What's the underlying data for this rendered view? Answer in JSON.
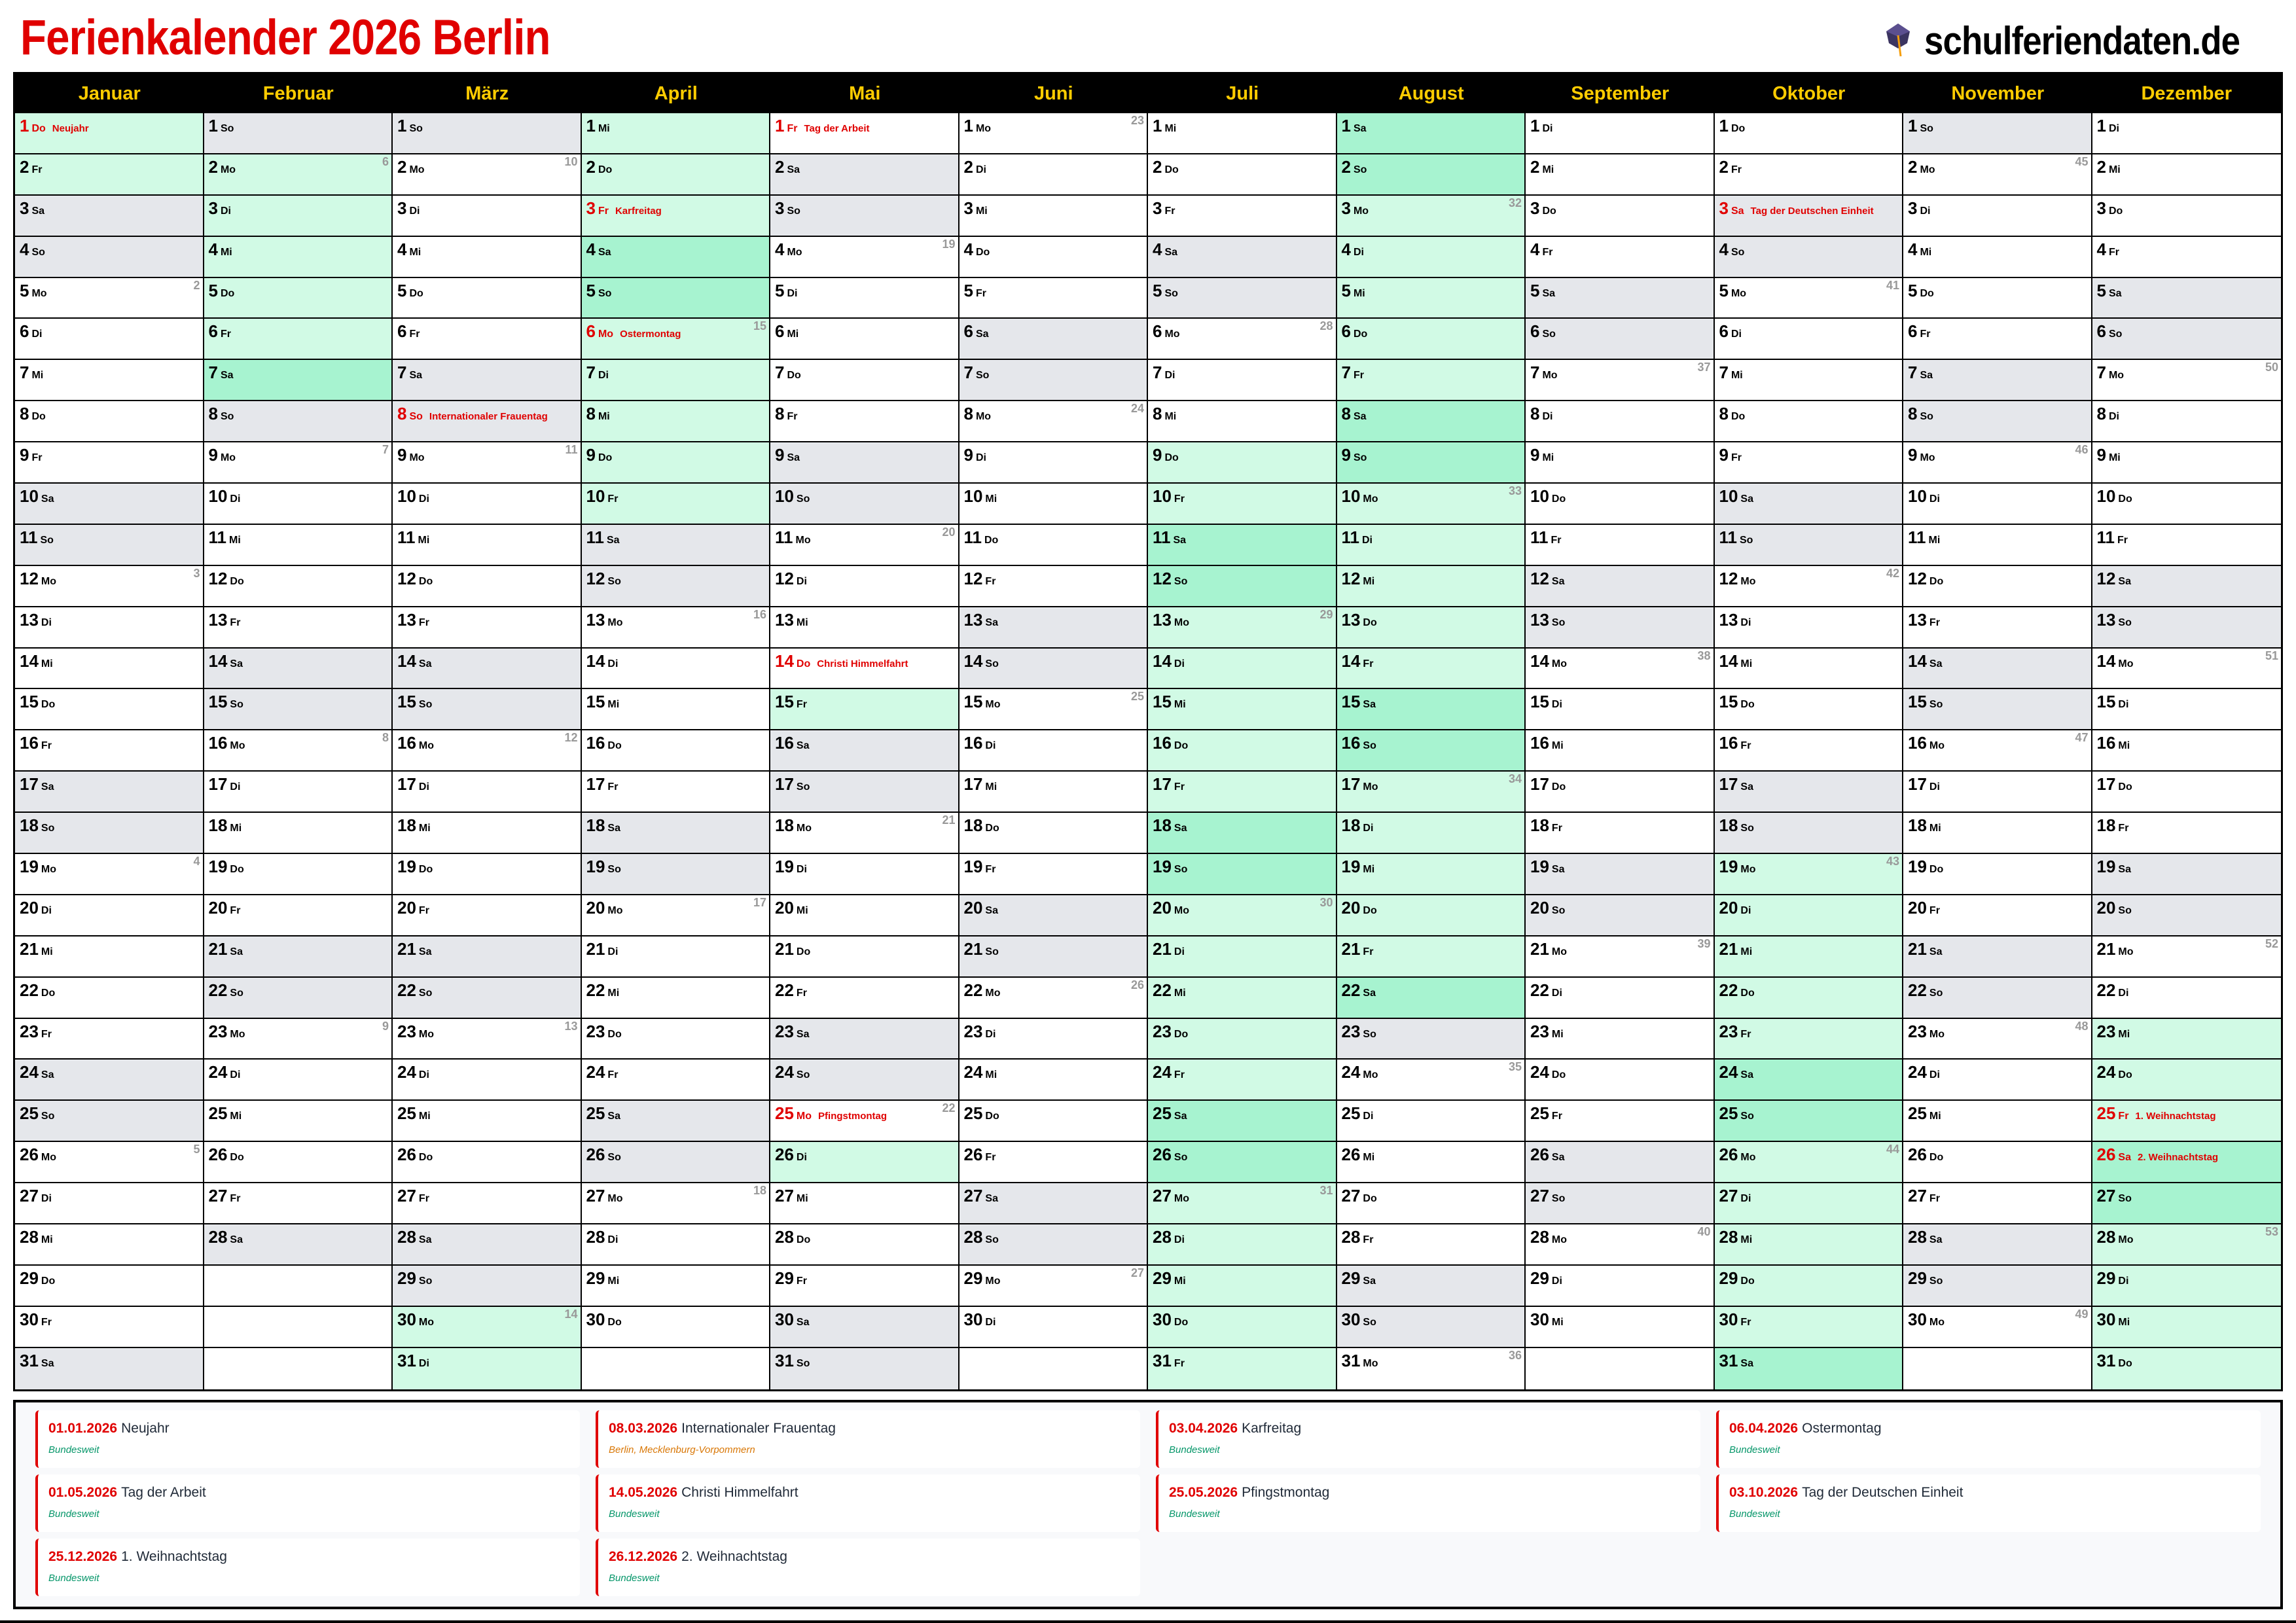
{
  "title": "Ferienkalender 2026 Berlin",
  "logo": {
    "text": "schulferiendaten.de",
    "icon": "graduation-cap-icon"
  },
  "colors": {
    "title": "#e00000",
    "header_bg": "#000000",
    "header_text": "#ffcc00",
    "weekend": "#e5e7eb",
    "ferien": "#d1fae5",
    "ferien_weekend": "#a7f3d0",
    "holiday_text": "#e00000",
    "week_number": "#999999",
    "region_bundesweit": "#059669",
    "region_regional": "#d97706"
  },
  "year": 2026,
  "weekday_names": [
    "Mo",
    "Di",
    "Mi",
    "Do",
    "Fr",
    "Sa",
    "So"
  ],
  "months": [
    {
      "name": "Januar",
      "first_weekday": "Do",
      "length": 31,
      "week_numbers": [
        2,
        3,
        4,
        5
      ]
    },
    {
      "name": "Februar",
      "first_weekday": "So",
      "length": 28,
      "week_numbers": [
        6,
        7,
        8,
        9
      ]
    },
    {
      "name": "März",
      "first_weekday": "So",
      "length": 31,
      "week_numbers": [
        10,
        11,
        12,
        13,
        14
      ]
    },
    {
      "name": "April",
      "first_weekday": "Mi",
      "length": 30,
      "week_numbers": [
        15,
        16,
        17,
        18
      ]
    },
    {
      "name": "Mai",
      "first_weekday": "Fr",
      "length": 31,
      "week_numbers": [
        19,
        20,
        21,
        22
      ]
    },
    {
      "name": "Juni",
      "first_weekday": "Mo",
      "length": 30,
      "week_numbers": [
        23,
        24,
        25,
        26,
        27
      ]
    },
    {
      "name": "Juli",
      "first_weekday": "Mi",
      "length": 31,
      "week_numbers": [
        28,
        29,
        30,
        31
      ]
    },
    {
      "name": "August",
      "first_weekday": "Sa",
      "length": 31,
      "week_numbers": [
        32,
        33,
        34,
        35,
        36
      ]
    },
    {
      "name": "September",
      "first_weekday": "Di",
      "length": 30,
      "week_numbers": [
        37,
        38,
        39,
        40
      ]
    },
    {
      "name": "Oktober",
      "first_weekday": "Do",
      "length": 31,
      "week_numbers": [
        41,
        42,
        43,
        44
      ]
    },
    {
      "name": "November",
      "first_weekday": "So",
      "length": 30,
      "week_numbers": [
        45,
        46,
        47,
        48,
        49
      ]
    },
    {
      "name": "Dezember",
      "first_weekday": "Di",
      "length": 31,
      "week_numbers": [
        50,
        51,
        52,
        53
      ]
    }
  ],
  "ferien": [
    {
      "from": "01.01.",
      "to": "02.01."
    },
    {
      "from": "02.02.",
      "to": "07.02."
    },
    {
      "from": "30.03.",
      "to": "10.04."
    },
    {
      "from": "15.05.",
      "to": "15.05."
    },
    {
      "from": "26.05.",
      "to": "26.05."
    },
    {
      "from": "09.07.",
      "to": "22.08."
    },
    {
      "from": "19.10.",
      "to": "31.10."
    },
    {
      "from": "23.12.",
      "to": "31.12."
    }
  ],
  "holidays": [
    {
      "date": "01.01.2026",
      "name": "Neujahr",
      "region": "Bundesweit",
      "regional": false
    },
    {
      "date": "08.03.2026",
      "name": "Internationaler Frauentag",
      "region": "Berlin, Mecklenburg-Vorpommern",
      "regional": true
    },
    {
      "date": "03.04.2026",
      "name": "Karfreitag",
      "region": "Bundesweit",
      "regional": false
    },
    {
      "date": "06.04.2026",
      "name": "Ostermontag",
      "region": "Bundesweit",
      "regional": false
    },
    {
      "date": "01.05.2026",
      "name": "Tag der Arbeit",
      "region": "Bundesweit",
      "regional": false
    },
    {
      "date": "14.05.2026",
      "name": "Christi Himmelfahrt",
      "region": "Bundesweit",
      "regional": false
    },
    {
      "date": "25.05.2026",
      "name": "Pfingstmontag",
      "region": "Bundesweit",
      "regional": false
    },
    {
      "date": "03.10.2026",
      "name": "Tag der Deutschen Einheit",
      "region": "Bundesweit",
      "regional": false
    },
    {
      "date": "25.12.2026",
      "name": "1. Weihnachtstag",
      "region": "Bundesweit",
      "regional": false
    },
    {
      "date": "26.12.2026",
      "name": "2. Weihnachtstag",
      "region": "Bundesweit",
      "regional": false
    }
  ]
}
